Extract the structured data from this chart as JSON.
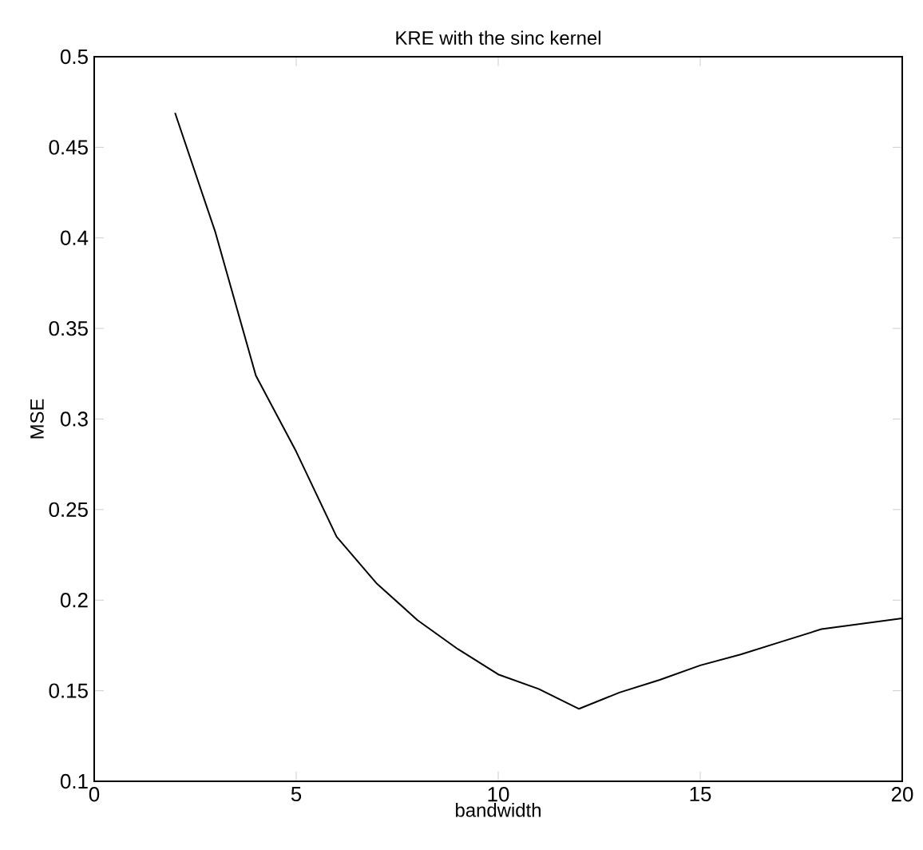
{
  "chart_data": {
    "type": "line",
    "title": "KRE with the sinc kernel",
    "xlabel": "bandwidth",
    "ylabel": "MSE",
    "x": [
      2,
      3,
      4,
      5,
      6,
      7,
      8,
      9,
      10,
      11,
      12,
      13,
      14,
      15,
      16,
      17,
      18,
      19,
      20
    ],
    "series": [
      {
        "color": "#000000",
        "values": [
          0.469,
          0.403,
          0.324,
          0.282,
          0.235,
          0.209,
          0.189,
          0.173,
          0.159,
          0.151,
          0.14,
          0.149,
          0.156,
          0.164,
          0.17,
          0.177,
          0.184,
          0.187,
          0.19
        ]
      }
    ],
    "xlim": [
      0,
      20
    ],
    "xticks": [
      0,
      5,
      10,
      15,
      20
    ],
    "ylim": [
      0.1,
      0.5
    ],
    "yticks": [
      0.1,
      0.15,
      0.2,
      0.25,
      0.3,
      0.35,
      0.4,
      0.45,
      0.5
    ],
    "marker": "none",
    "line_style": "solid"
  }
}
